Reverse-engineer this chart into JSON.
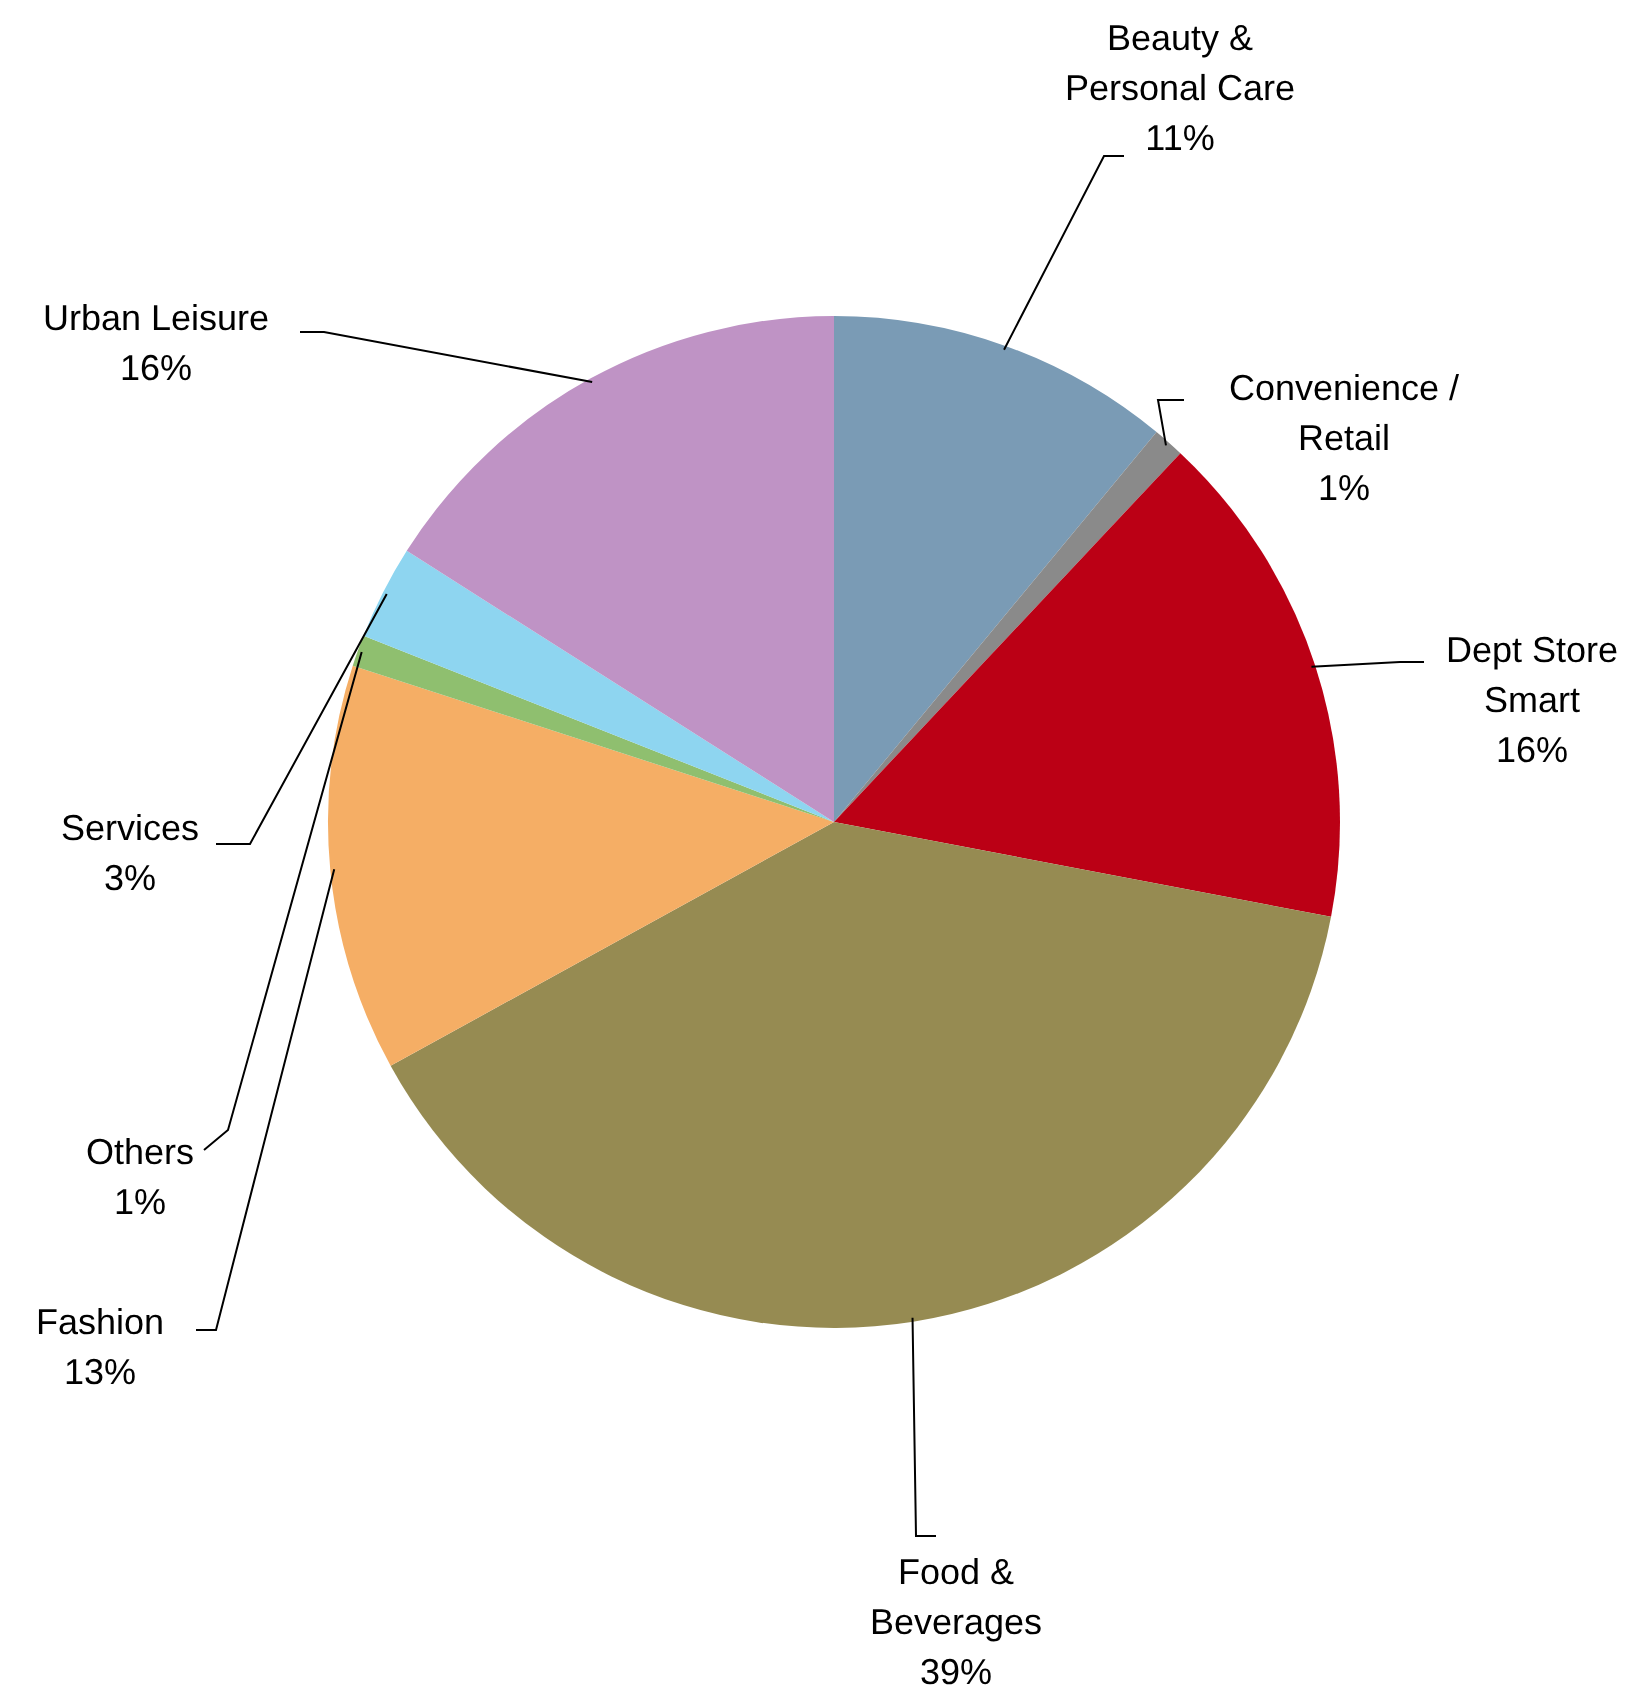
{
  "chart_data": {
    "type": "pie",
    "categories": [
      "Beauty & Personal Care",
      "Convenience / Retail",
      "Dept Store Smart",
      "Food & Beverages",
      "Fashion",
      "Others",
      "Services",
      "Urban Leisure"
    ],
    "values": [
      11,
      1,
      16,
      39,
      13,
      1,
      3,
      16
    ],
    "value_labels": [
      "11%",
      "1%",
      "16%",
      "39%",
      "13%",
      "1%",
      "3%",
      "16%"
    ],
    "colors": [
      "#7a9bb5",
      "#8a8a8a",
      "#bb0015",
      "#968b52",
      "#f5ae65",
      "#8fbf6f",
      "#8ed5f0",
      "#bf93c5"
    ],
    "legend": false
  }
}
